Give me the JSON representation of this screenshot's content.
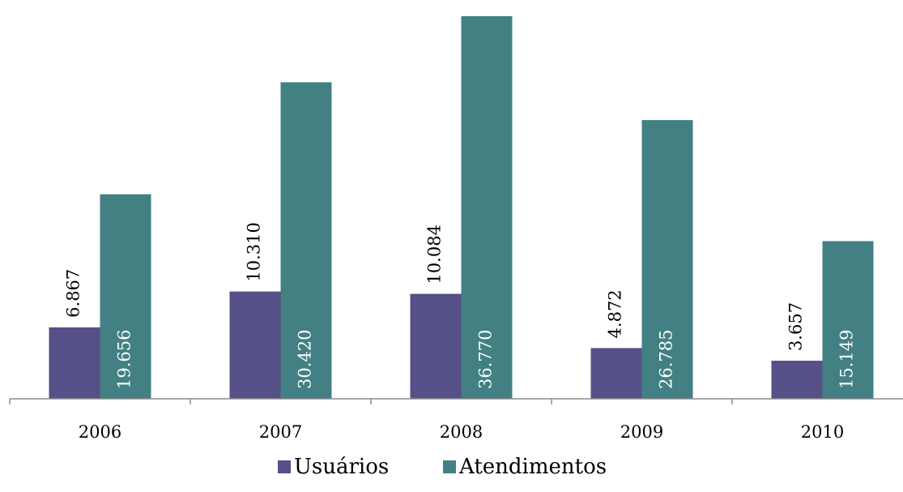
{
  "chart_data": {
    "type": "bar",
    "categories": [
      "2006",
      "2007",
      "2008",
      "2009",
      "2010"
    ],
    "series": [
      {
        "name": "Usuários",
        "values": [
          6867,
          10310,
          10084,
          4872,
          3657
        ],
        "labels": [
          "6.867",
          "10.310",
          "10.084",
          "4.872",
          "3.657"
        ],
        "color": "#555087"
      },
      {
        "name": "Atendimentos",
        "values": [
          19656,
          30420,
          36770,
          26785,
          15149
        ],
        "labels": [
          "19.656",
          "30.420",
          "36.770",
          "26.785",
          "15.149"
        ],
        "color": "#428083"
      }
    ],
    "ylim": [
      0,
      37000
    ],
    "grid": false,
    "legend_position": "bottom",
    "data_labels": "rotated"
  }
}
